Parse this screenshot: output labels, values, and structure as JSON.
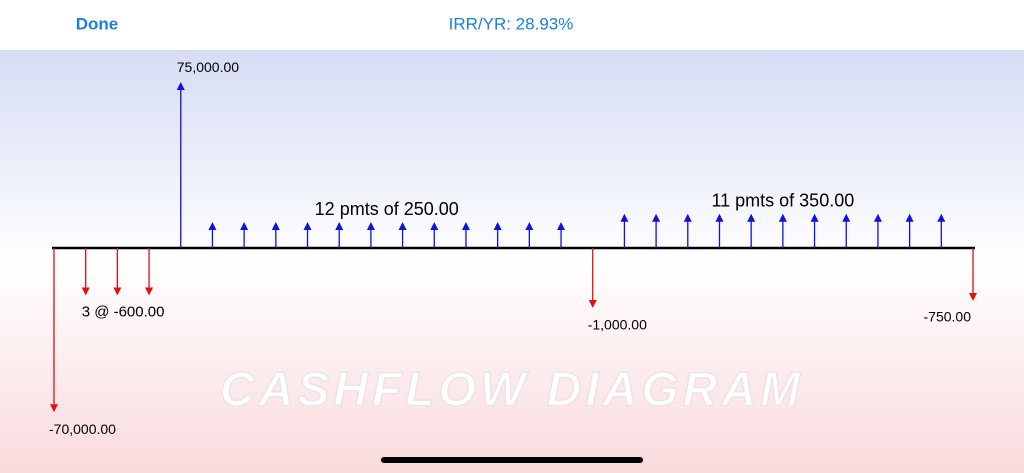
{
  "header": {
    "done": "Done",
    "title": "IRR/YR: 28.93%"
  },
  "diagram": {
    "watermark": "CASHFLOW DIAGRAM",
    "groups": [
      {
        "label": "-70,000.00",
        "amount": -70000,
        "count": 1,
        "start": 0
      },
      {
        "label": "3 @ -600.00",
        "amount": -600,
        "count": 3,
        "start": 1
      },
      {
        "label": "75,000.00",
        "amount": 75000,
        "count": 1,
        "start": 4
      },
      {
        "label": "12 pmts of 250.00",
        "amount": 250,
        "count": 12,
        "start": 5
      },
      {
        "label": "-1,000.00",
        "amount": -1000,
        "count": 1,
        "start": 17
      },
      {
        "label": "11 pmts of 350.00",
        "amount": 350,
        "count": 11,
        "start": 18
      },
      {
        "label": "-750.00",
        "amount": -750,
        "count": 1,
        "start": 29
      }
    ]
  }
}
